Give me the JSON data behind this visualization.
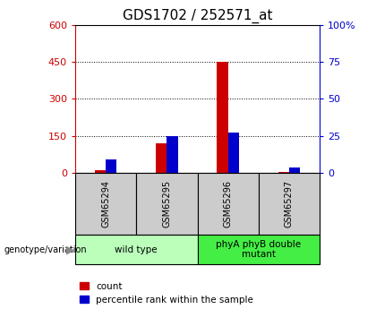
{
  "title": "GDS1702 / 252571_at",
  "samples": [
    "GSM65294",
    "GSM65295",
    "GSM65296",
    "GSM65297"
  ],
  "count_values": [
    10,
    120,
    450,
    5
  ],
  "percentile_values": [
    9,
    25,
    27,
    4
  ],
  "left_ylim": [
    0,
    600
  ],
  "left_yticks": [
    0,
    150,
    300,
    450,
    600
  ],
  "right_ylim": [
    0,
    100
  ],
  "right_yticks": [
    0,
    25,
    50,
    75,
    100
  ],
  "right_yticklabels": [
    "0",
    "25",
    "50",
    "75",
    "100%"
  ],
  "groups": [
    {
      "label": "wild type",
      "indices": [
        0,
        1
      ],
      "color": "#bbffbb"
    },
    {
      "label": "phyA phyB double\nmutant",
      "indices": [
        2,
        3
      ],
      "color": "#44ee44"
    }
  ],
  "left_axis_color": "#cc0000",
  "right_axis_color": "#0000cc",
  "count_bar_color": "#cc0000",
  "percentile_bar_color": "#0000cc",
  "background_color": "#ffffff",
  "title_fontsize": 11,
  "legend_items": [
    "count",
    "percentile rank within the sample"
  ],
  "genotype_label": "genotype/variation",
  "sample_box_color": "#cccccc"
}
